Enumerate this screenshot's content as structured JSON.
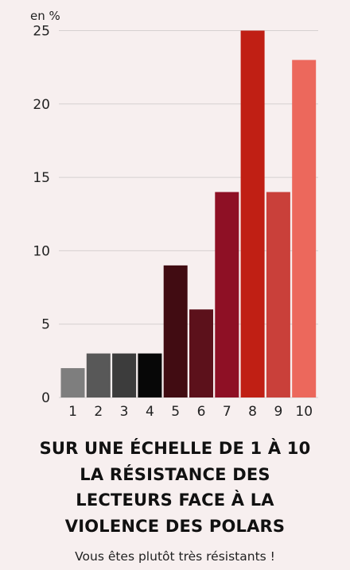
{
  "chart_data": {
    "type": "bar",
    "unit_label": "en %",
    "categories": [
      "1",
      "2",
      "3",
      "4",
      "5",
      "6",
      "7",
      "8",
      "9",
      "10"
    ],
    "values": [
      2,
      3,
      3,
      3,
      9,
      6,
      14,
      25,
      14,
      23
    ],
    "bar_colors": [
      "#7e7e7e",
      "#585858",
      "#3c3c3c",
      "#070707",
      "#410c12",
      "#5c111b",
      "#8e1025",
      "#c01f14",
      "#c9403a",
      "#ec685c"
    ],
    "ylim": [
      0,
      25
    ],
    "yticks": [
      "0",
      "5",
      "10",
      "15",
      "20",
      "25"
    ],
    "grid": true,
    "title": "SUR UNE ÉCHELLE DE 1 À 10\nLA RÉSISTANCE DES\nLECTEURS FACE À LA\nVIOLENCE DES POLARS",
    "subtitle": "Vous êtes plutôt très résistants !"
  }
}
